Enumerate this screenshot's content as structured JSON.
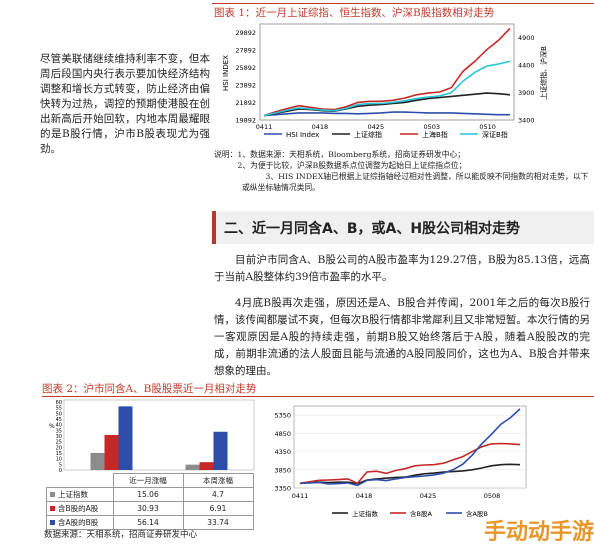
{
  "side_paragraph": "尽管美联储继续维持利率不变，但本周后段国内央行表示要加快经济结构调整和增长方式转变，防止经济由偏快转为过热，调控的预期使港股在创出新高后开始回软，内地本周最耀眼的是B股行情，沪市B股表现尤为强劲。",
  "figure1": {
    "title": "图表 1：近一月上证综指、恒生指数、沪深B股指数相对走势",
    "notes": [
      "说明：1、数据来源：天相系统，Bloomberg系统，招商证券研发中心；",
      "　　　2、为便于比较，沪深B股数据系点位调整为起始日上证综指点位；",
      "　　　3、HIS INDEX轴已根据上证综指轴经过相对性调整，所以能反映不同指数的相对走势，以下或纵坐标轴情况类同。"
    ]
  },
  "section_title": "二、近一月同含A、B，或A、H股公司相对走势",
  "paragraphs": [
    "目前沪市同含A、B股公司的A股市盈率为129.27倍，B股为85.13倍，远高于当前A股整体约39倍市盈率的水平。",
    "4月底B股再次走强，原因还是A、B股合并传闻，2001年之后的每次B股行情，该传闻都屡试不爽，但每次B股行情都非常犀利且又非常短暂。本次行情的另一客观原因是A股的持续走强，前期B股又始终落后于A股，随着A股股改的完成，前期非流通的法人股面且能与流通的A股同股同价，这也为A、B股合并带来想象的理由。"
  ],
  "figure2": {
    "title": "图表 2：沪市同含A、B股股票近一月相对走势",
    "source": "数据来源：天相系统，招商证券研发中心"
  },
  "logo_text": "手动动手游",
  "colors": {
    "blue": "#2d4ea8",
    "red": "#c62828",
    "gray": "#8c8c8c",
    "cyan": "#26c6da",
    "black": "#222222",
    "accent": "#c0392b"
  },
  "chart_data": [
    {
      "type": "line",
      "title": "",
      "x_ticks": [
        "0411",
        "0418",
        "0425",
        "0503",
        "0510"
      ],
      "y_left_ticks": [
        "29892",
        "27892",
        "25892",
        "23892",
        "21892",
        "19892"
      ],
      "y_left_label": "HSI INDEX",
      "y_right_ticks": [
        "4900",
        "4400",
        "3900",
        "3400"
      ],
      "y_right_label": "上证综指、沪深B",
      "ylim_left": [
        19892,
        30892
      ],
      "ylim_right": [
        3400,
        5150
      ],
      "series": [
        {
          "name": "HSI Index",
          "axis": "left",
          "color": "blue",
          "values": [
            20400,
            20500,
            20600,
            20700,
            20700,
            20700,
            20650,
            20650,
            20600,
            20650,
            20700,
            20800,
            20800,
            20750,
            20700,
            20700,
            20700,
            20650,
            20600,
            20550,
            20500,
            20500
          ]
        },
        {
          "name": "上证综指",
          "axis": "right",
          "color": "black",
          "values": [
            3480,
            3520,
            3560,
            3600,
            3590,
            3570,
            3560,
            3600,
            3650,
            3670,
            3680,
            3700,
            3720,
            3760,
            3790,
            3810,
            3830,
            3850,
            3870,
            3890,
            3880,
            3860
          ]
        },
        {
          "name": "上海B指",
          "axis": "right",
          "color": "red",
          "values": [
            3480,
            3550,
            3610,
            3660,
            3630,
            3600,
            3590,
            3640,
            3720,
            3740,
            3740,
            3760,
            3800,
            3860,
            3890,
            3910,
            3990,
            4290,
            4470,
            4680,
            4850,
            5070
          ]
        },
        {
          "name": "深证B指",
          "axis": "right",
          "color": "cyan",
          "values": [
            3480,
            3530,
            3580,
            3620,
            3600,
            3580,
            3570,
            3610,
            3680,
            3700,
            3700,
            3720,
            3750,
            3790,
            3820,
            3840,
            3900,
            4110,
            4270,
            4380,
            4420,
            4470
          ]
        }
      ],
      "legend": "bottom"
    },
    {
      "type": "bar",
      "title": "",
      "ylabel": "%",
      "categories": [
        "近一月涨幅",
        "本周涨幅"
      ],
      "y_ticks": [
        "60",
        "55",
        "50",
        "45",
        "40",
        "35",
        "30",
        "25",
        "20",
        "15",
        "10",
        "5",
        "0"
      ],
      "ylim": [
        0,
        60
      ],
      "series": [
        {
          "name": "上证指数",
          "color": "gray",
          "values": [
            15.06,
            4.7
          ]
        },
        {
          "name": "含B股的A股",
          "color": "red",
          "values": [
            30.93,
            6.91
          ]
        },
        {
          "name": "含A股的B股",
          "color": "blue",
          "values": [
            56.14,
            33.74
          ]
        }
      ],
      "table": [
        {
          "name": "上证指数",
          "values": [
            "15.06",
            "4.7"
          ]
        },
        {
          "name": "含B股的A股",
          "values": [
            "30.93",
            "6.91"
          ]
        },
        {
          "name": "含A股的B股",
          "values": [
            "56.14",
            "33.74"
          ]
        }
      ]
    },
    {
      "type": "line",
      "title": "",
      "x_ticks": [
        "0411",
        "0418",
        "0425",
        "0508"
      ],
      "y_ticks": [
        "5350",
        "4850",
        "4350",
        "3850",
        "3350"
      ],
      "ylim": [
        3350,
        5600
      ],
      "series": [
        {
          "name": "上证指数",
          "color": "black",
          "values": [
            3480,
            3500,
            3510,
            3500,
            3510,
            3510,
            3470,
            3570,
            3600,
            3620,
            3640,
            3650,
            3700,
            3740,
            3760,
            3790,
            3800,
            3820,
            3850,
            3900,
            3960,
            3990,
            4000,
            3990
          ]
        },
        {
          "name": "含B股A",
          "color": "red",
          "values": [
            3480,
            3520,
            3560,
            3570,
            3580,
            3600,
            3480,
            3790,
            3810,
            3750,
            3830,
            3880,
            3960,
            3980,
            3990,
            4030,
            4120,
            4210,
            4350,
            4480,
            4560,
            4570,
            4560,
            4540
          ]
        },
        {
          "name": "含A股B",
          "color": "blue",
          "values": [
            3480,
            3490,
            3500,
            3460,
            3470,
            3490,
            3420,
            3560,
            3580,
            3550,
            3600,
            3640,
            3660,
            3680,
            3710,
            3760,
            3850,
            4000,
            4250,
            4560,
            4820,
            5100,
            5280,
            5520
          ]
        }
      ],
      "legend": "bottom"
    }
  ]
}
